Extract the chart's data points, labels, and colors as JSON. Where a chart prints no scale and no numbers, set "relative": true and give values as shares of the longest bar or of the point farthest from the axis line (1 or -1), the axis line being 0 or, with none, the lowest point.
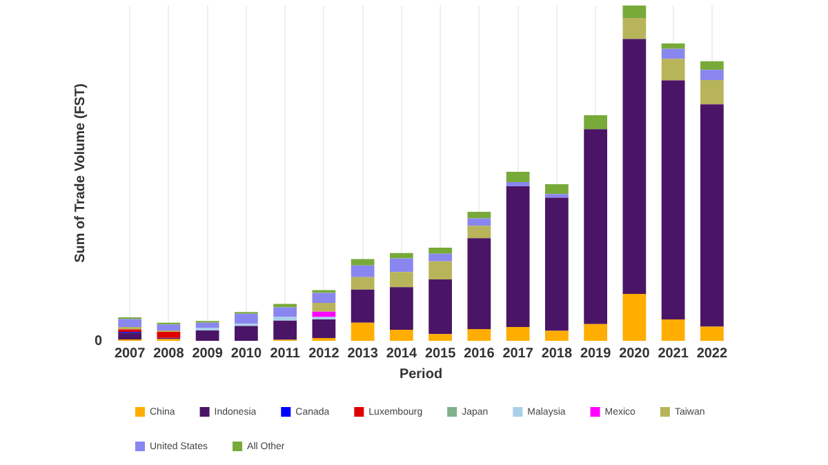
{
  "chart_data": {
    "type": "bar",
    "stacked": true,
    "relative": true,
    "xlabel": "Period",
    "ylabel": "Sum of Trade Volume (FST)",
    "annotations": [
      "0"
    ],
    "grid": true,
    "legend": "bottom",
    "categories": [
      "2007",
      "2008",
      "2009",
      "2010",
      "2011",
      "2012",
      "2013",
      "2014",
      "2015",
      "2016",
      "2017",
      "2018",
      "2019",
      "2020",
      "2021",
      "2022"
    ],
    "series": [
      {
        "name": "China",
        "color": "#ffad00",
        "values": [
          0.004,
          0.005,
          null,
          null,
          0.003,
          0.008,
          0.054,
          0.033,
          0.02,
          0.035,
          0.041,
          0.03,
          0.05,
          0.14,
          0.064,
          0.042
        ]
      },
      {
        "name": "Indonesia",
        "color": "#4a1566",
        "values": [
          0.02,
          0.004,
          0.031,
          0.044,
          0.057,
          0.056,
          0.099,
          0.127,
          0.163,
          0.271,
          0.42,
          0.397,
          0.581,
          0.76,
          0.713,
          0.663
        ]
      },
      {
        "name": "Canada",
        "color": "#0000ff",
        "values": [
          0.003,
          null,
          null,
          null,
          null,
          null,
          null,
          null,
          null,
          null,
          null,
          null,
          null,
          null,
          null,
          null
        ]
      },
      {
        "name": "Luxembourg",
        "color": "#e00000",
        "values": [
          0.007,
          0.018,
          null,
          null,
          null,
          null,
          null,
          null,
          null,
          null,
          null,
          null,
          null,
          null,
          null,
          null
        ]
      },
      {
        "name": "Japan",
        "color": "#7fb08a",
        "values": [
          null,
          null,
          null,
          null,
          null,
          null,
          null,
          null,
          null,
          null,
          null,
          null,
          null,
          null,
          null,
          null
        ]
      },
      {
        "name": "Malaysia",
        "color": "#a8d0e8",
        "values": [
          null,
          null,
          0.007,
          0.007,
          0.011,
          0.007,
          null,
          null,
          null,
          null,
          null,
          null,
          null,
          null,
          null,
          null
        ]
      },
      {
        "name": "Mexico",
        "color": "#ff00ff",
        "values": [
          null,
          null,
          null,
          null,
          null,
          0.016,
          null,
          null,
          null,
          null,
          null,
          null,
          null,
          null,
          null,
          null
        ]
      },
      {
        "name": "Taiwan",
        "color": "#b8b45a",
        "values": [
          0.007,
          0.004,
          null,
          null,
          null,
          0.026,
          0.037,
          0.045,
          0.054,
          0.037,
          null,
          null,
          null,
          0.063,
          0.064,
          0.073
        ]
      },
      {
        "name": "United States",
        "color": "#8a86f0",
        "values": [
          0.024,
          0.018,
          0.016,
          0.03,
          0.029,
          0.03,
          0.035,
          0.041,
          0.023,
          0.022,
          0.012,
          0.011,
          null,
          null,
          0.03,
          0.03
        ]
      },
      {
        "name": "All Other",
        "color": "#78aa3a",
        "values": [
          0.005,
          0.005,
          0.005,
          0.005,
          0.01,
          0.008,
          0.019,
          0.016,
          0.018,
          0.02,
          0.031,
          0.029,
          0.042,
          0.037,
          0.016,
          0.026
        ]
      }
    ]
  }
}
